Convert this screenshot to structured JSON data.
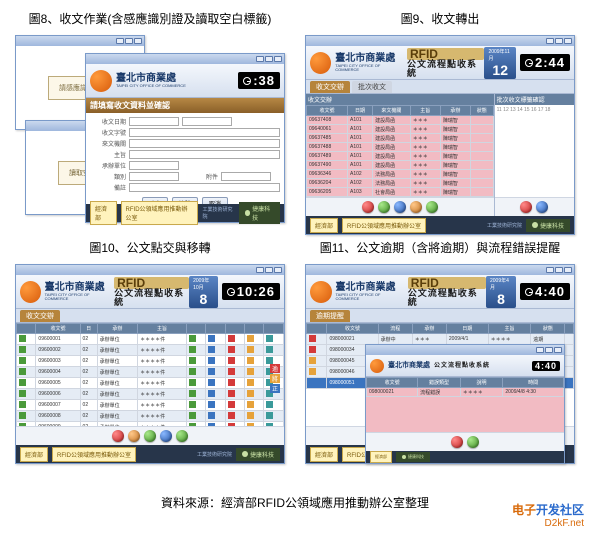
{
  "captions": {
    "c8": "圖8、收文作業(含感應識別證及讀取空白標籤)",
    "c9": "圖9、收文轉出",
    "c10": "圖10、公文點交與移轉",
    "c11": "圖11、公文逾期（含將逾期）與流程錯誤提醒"
  },
  "header": {
    "org_cn": "臺北市商業處",
    "org_en": "TAIPEI CITY OFFICE OF COMMERCE",
    "rfid": "RFID",
    "rfid_sub": "公文流程點收系統"
  },
  "dates": {
    "p9": {
      "ym": "2009年11月",
      "d": "12",
      "t": "2:44"
    },
    "p10": {
      "ym": "2009年10月",
      "d": "8",
      "t": "10:26"
    },
    "p11": {
      "ym": "2009年4月",
      "d": "8",
      "t": "4:40"
    },
    "p8c": {
      "t": ":38"
    }
  },
  "p8": {
    "boxA": "請感應識別證",
    "boxB": "讀取空白標籤",
    "form_hdr": "請填寫收文資料並確認",
    "labels": [
      "收文日期",
      "收文字號",
      "來文機關",
      "主旨",
      "承辦單位",
      "類別",
      "附件",
      "備註"
    ],
    "btns": [
      "確定",
      "清除",
      "取消"
    ]
  },
  "p9": {
    "tab_a": "收文交辦",
    "tab_b": "批次收文",
    "left_hdr": "收文交辦",
    "cols": [
      "收文號",
      "日期",
      "來文機關",
      "主旨",
      "承辦",
      "狀態"
    ],
    "rows": [
      [
        "09637408",
        "A101",
        "建設局函",
        "＊＊＊",
        "陳瑞智",
        ""
      ],
      [
        "09640061",
        "A101",
        "建設局函",
        "＊＊＊",
        "陳瑞智",
        ""
      ],
      [
        "09637485",
        "A101",
        "建設局函",
        "＊＊＊",
        "陳瑞智",
        ""
      ],
      [
        "09637488",
        "A101",
        "建設局函",
        "＊＊＊",
        "陳瑞智",
        ""
      ],
      [
        "09637489",
        "A101",
        "建設局函",
        "＊＊＊",
        "陳瑞智",
        ""
      ],
      [
        "09637490",
        "A101",
        "建設局函",
        "＊＊＊",
        "陳瑞智",
        ""
      ],
      [
        "09636346",
        "A102",
        "法務局函",
        "＊＊＊",
        "陳瑞智",
        ""
      ],
      [
        "09636204",
        "A102",
        "法務局函",
        "＊＊＊",
        "陳瑞智",
        ""
      ],
      [
        "09636205",
        "A103",
        "社會局函",
        "＊＊＊",
        "陳瑞智",
        ""
      ],
      [
        "09636213",
        "A103",
        "社會局函",
        "＊＊＊",
        "陳瑞智",
        ""
      ],
      [
        "09636287",
        "A103",
        "社會局函",
        "＊＊＊",
        "陳瑞智",
        ""
      ]
    ],
    "right_hdr": "批次收文標籤確認"
  },
  "p10": {
    "tab": "收文交辦",
    "cols": [
      "",
      "收文號",
      "日",
      "承辦",
      "主旨",
      "",
      "",
      "",
      "",
      ""
    ],
    "rows": [
      [
        "",
        "09600001",
        "02",
        "承辦單位",
        "＊＊＊＊件",
        "",
        "",
        "",
        "",
        ""
      ],
      [
        "",
        "09600002",
        "02",
        "承辦單位",
        "＊＊＊＊件",
        "",
        "",
        "",
        "",
        ""
      ],
      [
        "",
        "09600003",
        "02",
        "承辦單位",
        "＊＊＊＊件",
        "",
        "",
        "",
        "",
        ""
      ],
      [
        "",
        "09600004",
        "02",
        "承辦單位",
        "＊＊＊＊件",
        "",
        "",
        "",
        "",
        ""
      ],
      [
        "",
        "09600005",
        "02",
        "承辦單位",
        "＊＊＊＊件",
        "",
        "",
        "",
        "",
        ""
      ],
      [
        "",
        "09600006",
        "02",
        "承辦單位",
        "＊＊＊＊件",
        "",
        "",
        "",
        "",
        ""
      ],
      [
        "",
        "09600007",
        "02",
        "承辦單位",
        "＊＊＊＊件",
        "",
        "",
        "",
        "",
        ""
      ],
      [
        "",
        "09600008",
        "02",
        "承辦單位",
        "＊＊＊＊件",
        "",
        "",
        "",
        "",
        ""
      ],
      [
        "",
        "09600009",
        "02",
        "承辦單位",
        "＊＊＊＊件",
        "",
        "",
        "",
        "",
        ""
      ],
      [
        "",
        "09600010",
        "02",
        "承辦單位",
        "＊＊＊＊件",
        "",
        "",
        "",
        "",
        ""
      ],
      [
        "",
        "09600011",
        "02",
        "承辦單位",
        "＊＊＊＊件",
        "",
        "",
        "",
        "",
        ""
      ]
    ]
  },
  "p11": {
    "cols": [
      "",
      "收文號",
      "流程",
      "承辦",
      "日期",
      "主旨",
      "狀態",
      ""
    ],
    "rows": [
      [
        "",
        "098000021",
        "承辦中",
        "＊＊＊",
        "2009/4/1",
        "＊＊＊＊",
        "逾期",
        ""
      ],
      [
        "",
        "098000034",
        "承辦中",
        "＊＊＊",
        "2009/4/2",
        "＊＊＊＊",
        "逾期",
        ""
      ],
      [
        "",
        "098000045",
        "承辦中",
        "＊＊＊",
        "2009/4/3",
        "＊＊＊＊",
        "將逾期",
        ""
      ],
      [
        "",
        "098000046",
        "承辦中",
        "＊＊＊",
        "2009/4/3",
        "＊＊＊＊",
        "將逾期",
        ""
      ],
      [
        "",
        "098000051",
        "流程中",
        "＊＊＊",
        "2009/4/5",
        "＊＊＊＊",
        "正常",
        ""
      ]
    ],
    "b_cols": [
      "收文號",
      "錯誤類型",
      "說明",
      "時間"
    ],
    "b_rows": [
      [
        "098000021",
        "流程錯誤",
        "＊＊＊＊",
        "2009/4/8 4:30"
      ]
    ]
  },
  "footer": {
    "box1": "經濟部",
    "box2": "RFID公領域應用推動辦公室",
    "right": "工業技術研究院",
    "brand": "捷康科技",
    "brand_en": "BiCom Information Technology, Inc."
  },
  "source": "資料來源：經濟部RFID公領域應用推動辦公室整理",
  "watermark": {
    "a": "电子",
    "b": "开发社区",
    "c": "D2kF.net"
  },
  "colors": {
    "red": "#d43a3a",
    "orange": "#e6a23a",
    "blue": "#3a74c0",
    "green": "#4a9a3a",
    "teal": "#3a9a9a"
  }
}
